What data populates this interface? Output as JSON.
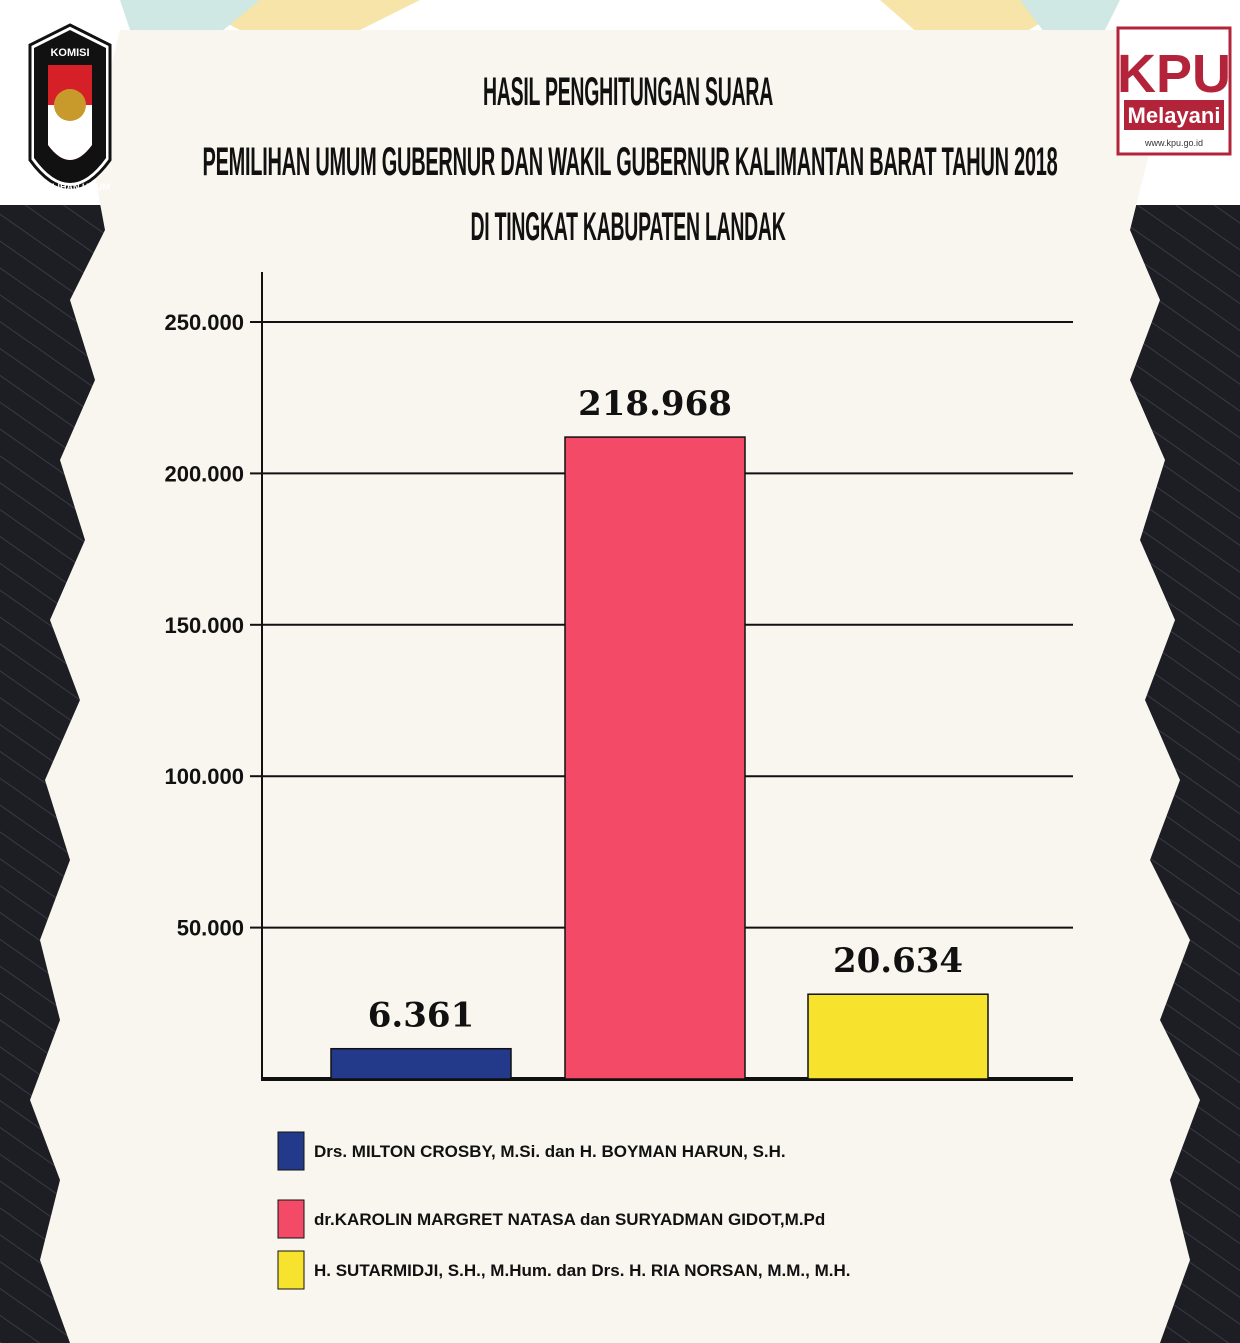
{
  "logos": {
    "kpu_seal_text_top": "KOMISI",
    "kpu_seal_text_bottom": "PEMILIHAN UMUM",
    "kpu_melayani_main": "KPU",
    "kpu_melayani_sub": "Melayani",
    "kpu_melayani_url": "www.kpu.go.id"
  },
  "colors": {
    "background_dark": "#1c1c22",
    "panel": "#f7f4ec",
    "series": [
      "#233a8a",
      "#f24a67",
      "#f7e22e"
    ]
  },
  "chart_data": {
    "type": "bar",
    "title": [
      "HASIL PENGHITUNGAN SUARA",
      "PEMILIHAN UMUM GUBERNUR DAN WAKIL GUBERNUR KALIMANTAN BARAT TAHUN 2018",
      "DI TINGKAT KABUPATEN LANDAK"
    ],
    "categories": [
      "Drs. MILTON  CROSBY, M.Si. dan H. BOYMAN HARUN, S.H.",
      "dr.KAROLIN MARGRET NATASA dan SURYADMAN GIDOT,M.Pd",
      "H. SUTARMIDJI, S.H., M.Hum. dan Drs. H. RIA NORSAN, M.M., M.H."
    ],
    "values": [
      6361,
      218968,
      20634
    ],
    "value_labels": [
      "6.361",
      "218.968",
      "20.634"
    ],
    "bar_heights_as_drawn": [
      10000,
      212000,
      28000
    ],
    "yticks": [
      50000,
      100000,
      150000,
      200000,
      250000
    ],
    "ytick_labels": [
      "50.000",
      "100.000",
      "150.000",
      "200.000",
      "250.000"
    ],
    "ylim": [
      0,
      265000
    ],
    "grid": true,
    "legend_position": "bottom"
  }
}
